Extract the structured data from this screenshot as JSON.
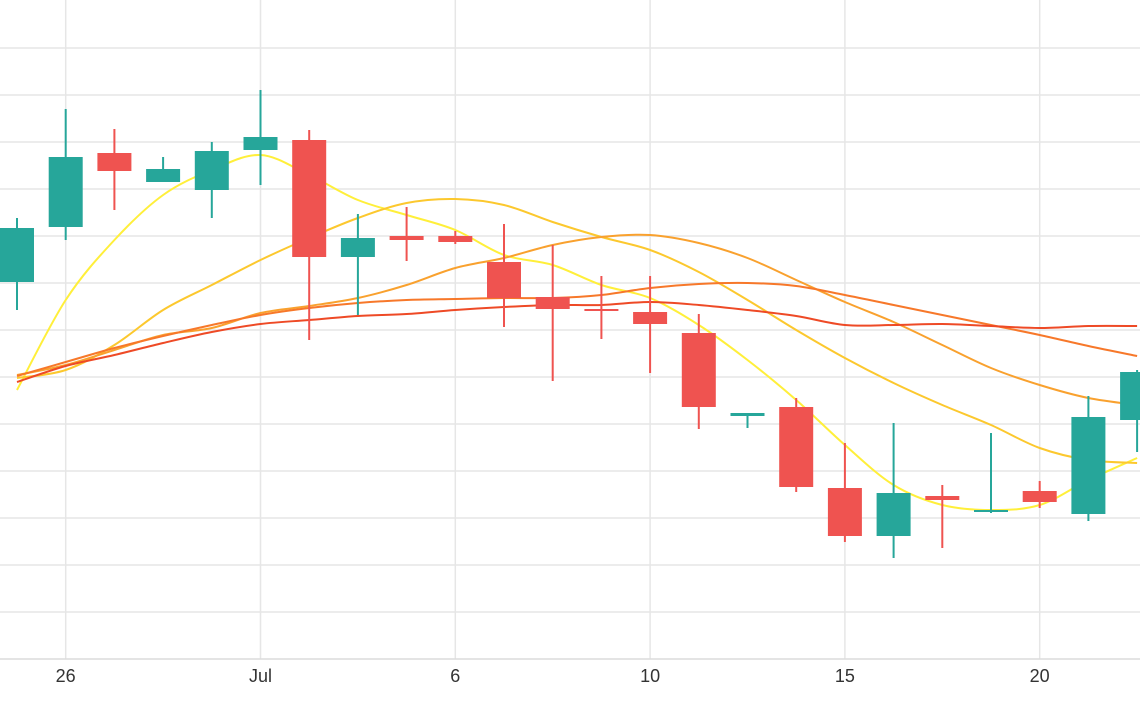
{
  "chart_data": {
    "type": "candlestick",
    "categories": [
      null,
      "26",
      null,
      null,
      null,
      "Jul",
      null,
      null,
      null,
      "6",
      null,
      null,
      null,
      "10",
      null,
      null,
      null,
      "15",
      null,
      null,
      null,
      "20",
      null,
      null
    ],
    "open": [
      377,
      432,
      506,
      477,
      469,
      509,
      519,
      402,
      423,
      423,
      397,
      362,
      350,
      347,
      326,
      243,
      252,
      171,
      123,
      163,
      147,
      168,
      145,
      239
    ],
    "high": [
      441,
      550,
      530,
      502,
      517,
      569,
      529,
      445,
      452,
      428,
      435,
      414,
      383,
      383,
      345,
      246,
      261,
      216,
      236,
      174,
      226,
      178,
      263,
      289
    ],
    "low": [
      349,
      419,
      449,
      477,
      441,
      474,
      319,
      344,
      398,
      415,
      332,
      278,
      320,
      286,
      230,
      231,
      167,
      117,
      101,
      111,
      146,
      151,
      138,
      207
    ],
    "close": [
      431,
      502,
      488,
      490,
      508,
      522,
      402,
      421,
      419,
      417,
      361,
      350,
      348,
      335,
      252,
      246,
      172,
      123,
      166,
      159,
      149,
      157,
      242,
      287
    ],
    "up_color": "#26a69a",
    "down_color": "#ef5350",
    "lines": [
      {
        "color": "#ffef3a",
        "values": [
          269,
          359,
          419,
          464,
          489,
          504,
          484,
          459,
          444,
          429,
          404,
          394,
          374,
          361,
          334,
          299,
          259,
          214,
          174,
          154,
          149,
          154,
          179,
          201
        ]
      },
      {
        "color": "#fcc82e",
        "values": [
          281,
          289,
          314,
          349,
          374,
          399,
          421,
          441,
          456,
          460,
          454,
          437,
          422,
          409,
          387,
          359,
          329,
          301,
          276,
          254,
          234,
          211,
          199,
          196
        ]
      },
      {
        "color": "#f9a12e",
        "values": [
          284,
          294,
          309,
          324,
          331,
          346,
          353,
          361,
          374,
          391,
          401,
          414,
          422,
          424,
          416,
          401,
          379,
          357,
          337,
          314,
          291,
          274,
          261,
          254
        ]
      },
      {
        "color": "#f7782a",
        "values": [
          283,
          297,
          311,
          323,
          334,
          344,
          351,
          356,
          359,
          360,
          361,
          361,
          364,
          371,
          375,
          376,
          373,
          364,
          354,
          344,
          334,
          324,
          313,
          303
        ]
      },
      {
        "color": "#ee4a26",
        "values": [
          277,
          293,
          304,
          316,
          327,
          335,
          339,
          343,
          345,
          349,
          352,
          354,
          354,
          357,
          354,
          349,
          343,
          334,
          334,
          335,
          333,
          331,
          333,
          333
        ]
      }
    ],
    "ylim": [
      0,
      659
    ],
    "yticks": [
      47,
      94,
      141,
      188,
      235,
      282,
      329,
      376,
      423,
      470,
      517,
      564,
      611
    ],
    "grid": true
  }
}
